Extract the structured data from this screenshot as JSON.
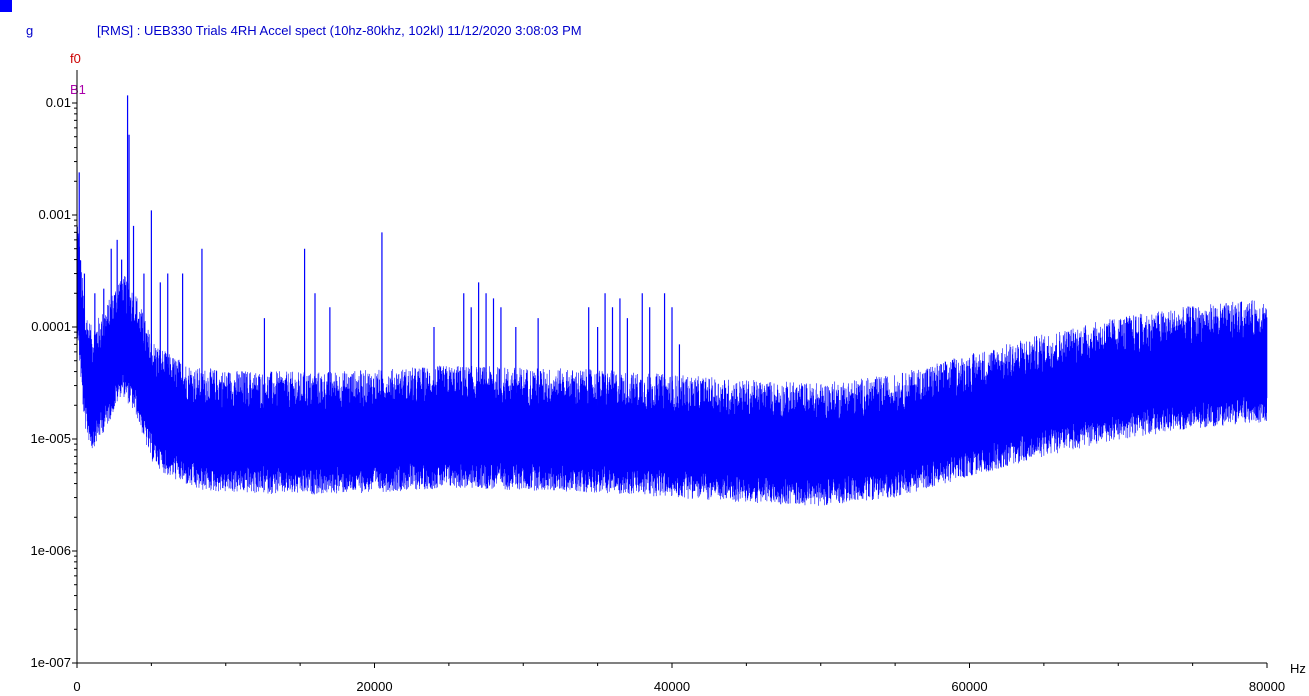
{
  "header": {
    "unit_label": "g",
    "title": "[RMS] : UEB330 Trials 4RH Accel spect (10hz-80khz, 102kl) 11/12/2020 3:08:03 PM",
    "cursor_f0": "f0",
    "cursor_b1": "B1",
    "x_unit": "Hz"
  },
  "colors": {
    "series": "#0000ff",
    "title": "#0000cc",
    "cursor_f0": "#cc0000",
    "cursor_b1": "#aa00aa",
    "axis": "#000000",
    "marker": "#0000ff"
  },
  "chart_data": {
    "type": "line",
    "title": "[RMS] : UEB330 Trials 4RH Accel spect (10hz-80khz, 102kl) 11/12/2020 3:08:03 PM",
    "xlabel": "Hz",
    "ylabel": "g",
    "xlim": [
      0,
      80000
    ],
    "ylim": [
      1e-07,
      0.02
    ],
    "yscale": "log",
    "grid": false,
    "legend": "none",
    "x_ticks": [
      {
        "value": 0,
        "label": "0"
      },
      {
        "value": 20000,
        "label": "20000"
      },
      {
        "value": 40000,
        "label": "40000"
      },
      {
        "value": 60000,
        "label": "60000"
      },
      {
        "value": 80000,
        "label": "80000"
      }
    ],
    "y_ticks": [
      {
        "value": 1e-07,
        "label": "1e-007"
      },
      {
        "value": 1e-06,
        "label": "1e-006"
      },
      {
        "value": 1e-05,
        "label": "1e-005"
      },
      {
        "value": 0.0001,
        "label": "0.0001"
      },
      {
        "value": 0.001,
        "label": "0.001"
      },
      {
        "value": 0.01,
        "label": "0.01"
      }
    ],
    "series": [
      {
        "baseline": [
          [
            0,
            0.0003
          ],
          [
            500,
            4e-05
          ],
          [
            1000,
            2.5e-05
          ],
          [
            2000,
            4e-05
          ],
          [
            3000,
            8e-05
          ],
          [
            4000,
            5e-05
          ],
          [
            5000,
            2e-05
          ],
          [
            6000,
            1.5e-05
          ],
          [
            8000,
            1.1e-05
          ],
          [
            10000,
            1.05e-05
          ],
          [
            15000,
            1e-05
          ],
          [
            20000,
            1.05e-05
          ],
          [
            25000,
            1.15e-05
          ],
          [
            30000,
            1.1e-05
          ],
          [
            35000,
            1.05e-05
          ],
          [
            40000,
            9.5e-06
          ],
          [
            45000,
            8.5e-06
          ],
          [
            50000,
            8e-06
          ],
          [
            55000,
            9.5e-06
          ],
          [
            60000,
            1.45e-05
          ],
          [
            65000,
            2.2e-05
          ],
          [
            70000,
            3.1e-05
          ],
          [
            75000,
            3.9e-05
          ],
          [
            80000,
            4.5e-05
          ]
        ],
        "peaks": [
          [
            150,
            0.0024
          ],
          [
            500,
            0.0003
          ],
          [
            1200,
            0.0002
          ],
          [
            1800,
            0.00022
          ],
          [
            2300,
            0.0005
          ],
          [
            2700,
            0.0006
          ],
          [
            3000,
            0.0004
          ],
          [
            3400,
            0.0117
          ],
          [
            3500,
            0.0052
          ],
          [
            3800,
            0.0008
          ],
          [
            4500,
            0.0003
          ],
          [
            5000,
            0.0011
          ],
          [
            5600,
            0.00025
          ],
          [
            6100,
            0.0003
          ],
          [
            7100,
            0.0003
          ],
          [
            8400,
            0.0005
          ],
          [
            12600,
            0.00012
          ],
          [
            15300,
            0.0005
          ],
          [
            16000,
            0.0002
          ],
          [
            17000,
            0.00015
          ],
          [
            20500,
            0.0007
          ],
          [
            24000,
            0.0001
          ],
          [
            26000,
            0.0002
          ],
          [
            26500,
            0.00015
          ],
          [
            27000,
            0.00025
          ],
          [
            27500,
            0.0002
          ],
          [
            28000,
            0.00018
          ],
          [
            28500,
            0.00015
          ],
          [
            29500,
            0.0001
          ],
          [
            31000,
            0.00012
          ],
          [
            34400,
            0.00015
          ],
          [
            35000,
            0.0001
          ],
          [
            35500,
            0.0002
          ],
          [
            36000,
            0.00015
          ],
          [
            36500,
            0.00018
          ],
          [
            37000,
            0.00012
          ],
          [
            38000,
            0.0002
          ],
          [
            38500,
            0.00015
          ],
          [
            39500,
            0.0002
          ],
          [
            40000,
            0.00015
          ],
          [
            40500,
            7e-05
          ]
        ]
      }
    ]
  }
}
